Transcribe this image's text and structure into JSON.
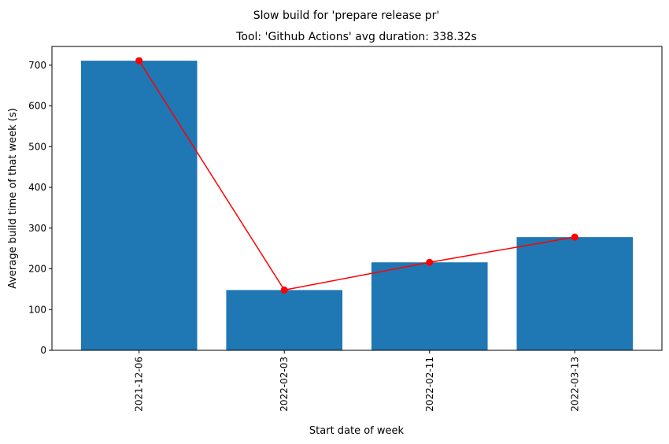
{
  "chart_data": {
    "type": "bar",
    "suptitle": "Slow build for 'prepare release pr'",
    "title": "Tool: 'Github Actions' avg duration: 338.32s",
    "xlabel": "Start date of week",
    "ylabel": "Average build time of that week (s)",
    "categories": [
      "2021-12-06",
      "2022-02-03",
      "2022-02-11",
      "2022-03-13"
    ],
    "values": [
      711,
      148,
      216,
      278
    ],
    "line_values": [
      711,
      148,
      216,
      278
    ],
    "ylim": [
      0,
      746
    ],
    "yticks": [
      0,
      100,
      200,
      300,
      400,
      500,
      600,
      700
    ],
    "bar_color": "#1f77b4",
    "line_color": "#ff0000",
    "grid": false,
    "legend": "none"
  }
}
